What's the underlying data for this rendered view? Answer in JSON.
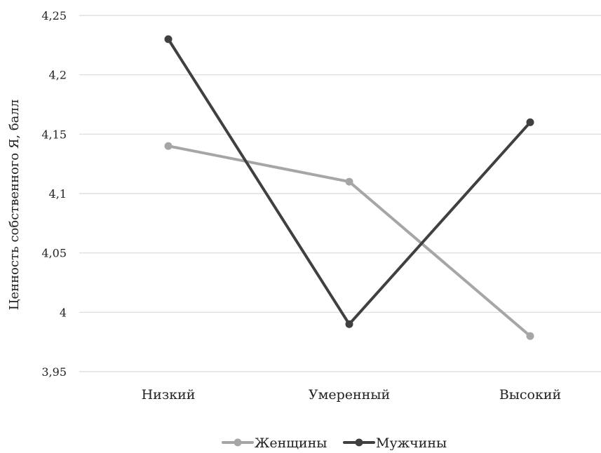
{
  "chart_data": {
    "type": "line",
    "title": "",
    "xlabel": "",
    "ylabel": "Ценность собственного Я, балл",
    "categories": [
      "Низкий",
      "Умеренный",
      "Высокий"
    ],
    "ylim": [
      3.95,
      4.25
    ],
    "yticks": [
      3.95,
      4,
      4.05,
      4.1,
      4.15,
      4.2,
      4.25
    ],
    "ytick_labels": [
      "3,95",
      "4",
      "4,05",
      "4,1",
      "4,15",
      "4,2",
      "4,25"
    ],
    "grid": "horizontal",
    "legend_position": "bottom",
    "series": [
      {
        "name": "Женщины",
        "color": "#a6a6a6",
        "values": [
          4.14,
          4.11,
          3.98
        ]
      },
      {
        "name": "Мужчины",
        "color": "#404040",
        "values": [
          4.23,
          3.99,
          4.16
        ]
      }
    ]
  }
}
